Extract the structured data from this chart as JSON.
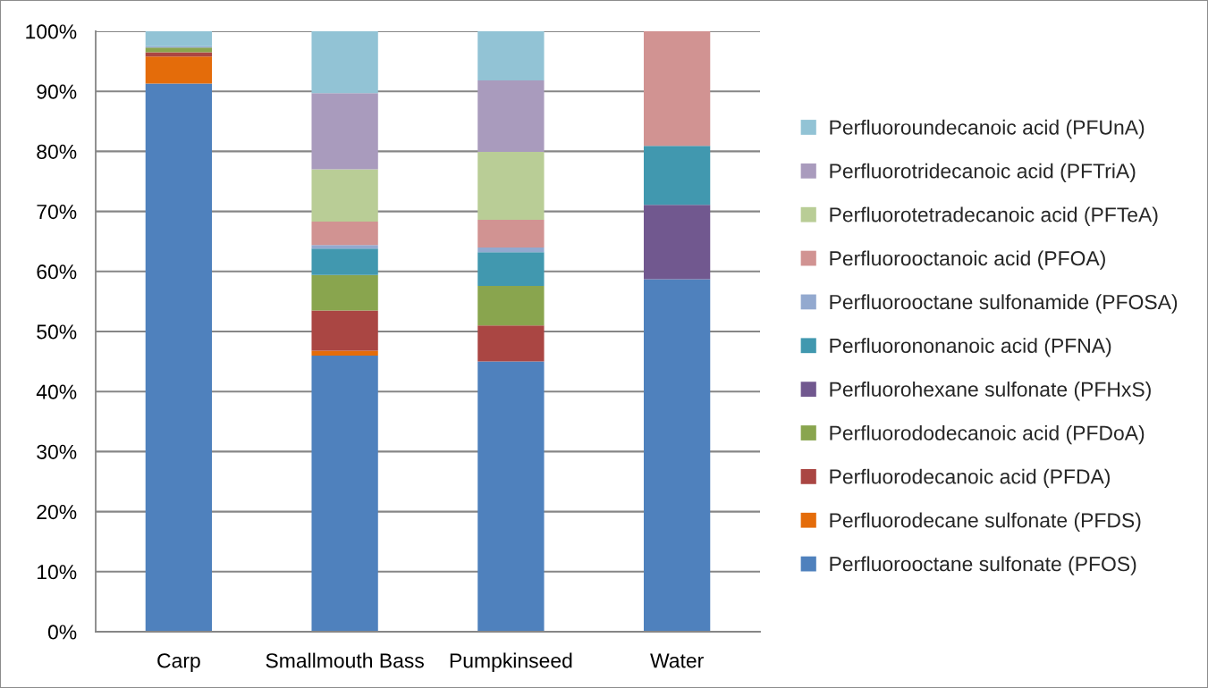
{
  "chart_data": {
    "type": "bar",
    "stacked": true,
    "categories": [
      "Carp",
      "Smallmouth Bass",
      "Pumpkinseed",
      "Water"
    ],
    "series": [
      {
        "name": "Perfluorooctane sulfonate (PFOS)",
        "color": "#4f81bd",
        "values": [
          91.3,
          46.0,
          45.0,
          58.7
        ]
      },
      {
        "name": "Perfluorodecane sulfonate (PFDS)",
        "color": "#e46c0a",
        "values": [
          4.5,
          0.8,
          null,
          null
        ]
      },
      {
        "name": "Perfluorodecanoic acid (PFDA)",
        "color": "#aa4643",
        "values": [
          0.7,
          6.7,
          6.0,
          null
        ]
      },
      {
        "name": "Perfluorododecanoic acid (PFDoA)",
        "color": "#89a54e",
        "values": [
          0.8,
          5.9,
          6.6,
          null
        ]
      },
      {
        "name": "Perfluorohexane sulfonate (PFHxS)",
        "color": "#71588f",
        "values": [
          null,
          null,
          null,
          12.4
        ]
      },
      {
        "name": "Perfluorononanoic acid (PFNA)",
        "color": "#4198af",
        "values": [
          null,
          4.4,
          5.6,
          9.8
        ]
      },
      {
        "name": "Perfluorooctane sulfonamide (PFOSA)",
        "color": "#93a9cf",
        "values": [
          0.2,
          0.6,
          0.8,
          null
        ]
      },
      {
        "name": "Perfluorooctanoic acid (PFOA)",
        "color": "#d19392",
        "values": [
          null,
          3.9,
          4.6,
          19.1
        ]
      },
      {
        "name": "Perfluorotetradecanoic acid (PFTeA)",
        "color": "#b9cd96",
        "values": [
          null,
          8.7,
          11.3,
          null
        ]
      },
      {
        "name": "Perfluorotridecanoic acid (PFTriA)",
        "color": "#a99bbd",
        "values": [
          null,
          12.7,
          11.9,
          null
        ]
      },
      {
        "name": "Perfluoroundecanoic acid (PFUnA)",
        "color": "#92c3d5",
        "values": [
          2.5,
          10.3,
          8.2,
          null
        ]
      }
    ],
    "ylim": [
      0,
      100
    ],
    "yticks": [
      {
        "value": 0,
        "label": "0%"
      },
      {
        "value": 10,
        "label": "10%"
      },
      {
        "value": 20,
        "label": "20%"
      },
      {
        "value": 30,
        "label": "30%"
      },
      {
        "value": 40,
        "label": "40%"
      },
      {
        "value": 50,
        "label": "50%"
      },
      {
        "value": 60,
        "label": "60%"
      },
      {
        "value": 70,
        "label": "70%"
      },
      {
        "value": 80,
        "label": "80%"
      },
      {
        "value": 90,
        "label": "90%"
      },
      {
        "value": 100,
        "label": "100%"
      }
    ],
    "grid": "y",
    "legend": "right"
  }
}
